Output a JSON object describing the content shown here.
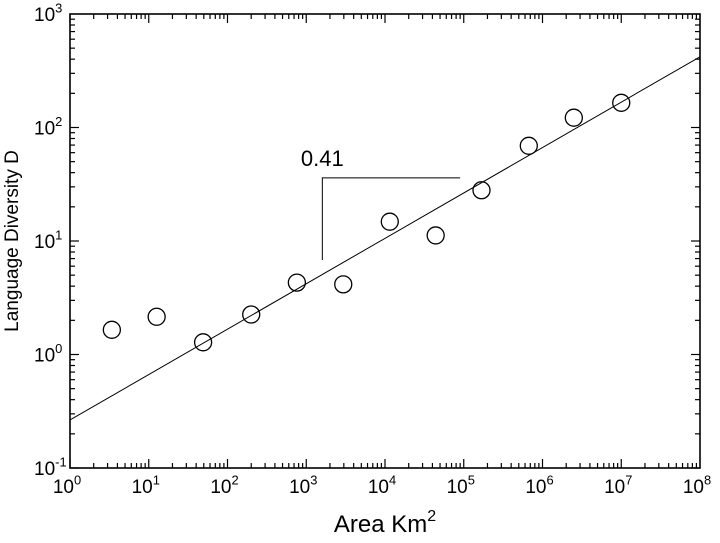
{
  "chart_data": {
    "type": "scatter",
    "title": "",
    "xlabel": "Area   Km",
    "xlabel_sup": "2",
    "ylabel": "Language Diversity D",
    "x_scale": "log",
    "y_scale": "log",
    "xlim": [
      1,
      100000000
    ],
    "ylim": [
      0.1,
      1000
    ],
    "grid": false,
    "x_ticks": [
      {
        "base": "10",
        "exp": "0",
        "value": 1
      },
      {
        "base": "10",
        "exp": "1",
        "value": 10
      },
      {
        "base": "10",
        "exp": "2",
        "value": 100
      },
      {
        "base": "10",
        "exp": "3",
        "value": 1000
      },
      {
        "base": "10",
        "exp": "4",
        "value": 10000
      },
      {
        "base": "10",
        "exp": "5",
        "value": 100000
      },
      {
        "base": "10",
        "exp": "6",
        "value": 1000000
      },
      {
        "base": "10",
        "exp": "7",
        "value": 10000000
      },
      {
        "base": "10",
        "exp": "8",
        "value": 100000000
      }
    ],
    "y_ticks": [
      {
        "base": "10",
        "exp": "-1",
        "value": 0.1
      },
      {
        "base": "10",
        "exp": "0",
        "value": 1
      },
      {
        "base": "10",
        "exp": "1",
        "value": 10
      },
      {
        "base": "10",
        "exp": "2",
        "value": 100
      },
      {
        "base": "10",
        "exp": "3",
        "value": 1000
      }
    ],
    "series": [
      {
        "marker": "open-circle",
        "points": [
          {
            "x": 3.4,
            "y": 1.65
          },
          {
            "x": 12.6,
            "y": 2.15
          },
          {
            "x": 49,
            "y": 1.28
          },
          {
            "x": 200,
            "y": 2.25
          },
          {
            "x": 760,
            "y": 4.3
          },
          {
            "x": 2950,
            "y": 4.15
          },
          {
            "x": 11500,
            "y": 14.8
          },
          {
            "x": 44000,
            "y": 11.2
          },
          {
            "x": 168000,
            "y": 28
          },
          {
            "x": 670000,
            "y": 69
          },
          {
            "x": 2500000,
            "y": 122
          },
          {
            "x": 10000000,
            "y": 165
          }
        ]
      }
    ],
    "fit_line": {
      "x_start": 1,
      "y_start": 0.265,
      "x_end": 100000000,
      "y_end": 420
    },
    "annotations": [
      {
        "text": "0.41",
        "type": "slope-triangle",
        "x_from": 1600,
        "x_to": 90000,
        "y_top": 36,
        "y_bottom": 6.8
      }
    ]
  }
}
